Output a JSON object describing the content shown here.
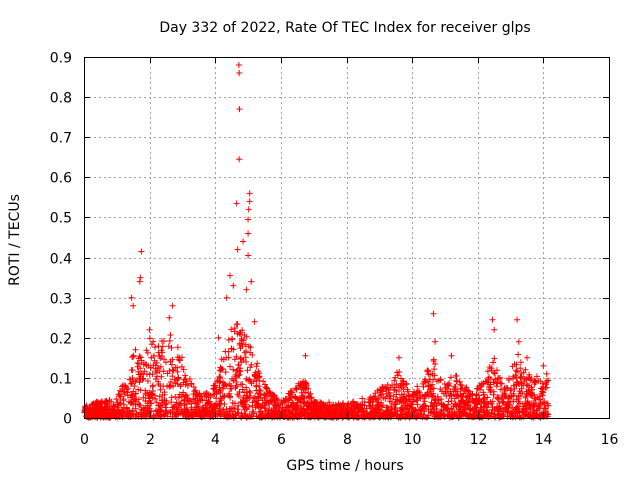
{
  "chart_data": {
    "type": "scatter",
    "title": "Day 332 of 2022, Rate Of TEC Index for receiver glps",
    "xlabel": "GPS time / hours",
    "ylabel": "ROTI / TECUs",
    "xlim": [
      0,
      16
    ],
    "ylim": [
      0,
      0.9
    ],
    "xticks": [
      "0",
      "2",
      "4",
      "6",
      "8",
      "10",
      "12",
      "14",
      "16"
    ],
    "yticks": [
      "0",
      "0.1",
      "0.2",
      "0.3",
      "0.4",
      "0.5",
      "0.6",
      "0.7",
      "0.8",
      "0.9"
    ],
    "grid": true,
    "marker": "+",
    "color": "#ff0000",
    "notable_points": [
      {
        "x": 1.45,
        "y": 0.3
      },
      {
        "x": 1.5,
        "y": 0.28
      },
      {
        "x": 1.75,
        "y": 0.415
      },
      {
        "x": 1.72,
        "y": 0.35
      },
      {
        "x": 1.7,
        "y": 0.34
      },
      {
        "x": 2.0,
        "y": 0.22
      },
      {
        "x": 2.6,
        "y": 0.25
      },
      {
        "x": 2.7,
        "y": 0.28
      },
      {
        "x": 4.1,
        "y": 0.2
      },
      {
        "x": 4.35,
        "y": 0.3
      },
      {
        "x": 4.45,
        "y": 0.355
      },
      {
        "x": 4.55,
        "y": 0.33
      },
      {
        "x": 4.65,
        "y": 0.535
      },
      {
        "x": 4.68,
        "y": 0.42
      },
      {
        "x": 4.72,
        "y": 0.88
      },
      {
        "x": 4.73,
        "y": 0.86
      },
      {
        "x": 4.74,
        "y": 0.77
      },
      {
        "x": 4.73,
        "y": 0.645
      },
      {
        "x": 4.85,
        "y": 0.44
      },
      {
        "x": 4.95,
        "y": 0.32
      },
      {
        "x": 5.05,
        "y": 0.56
      },
      {
        "x": 5.05,
        "y": 0.54
      },
      {
        "x": 5.02,
        "y": 0.52
      },
      {
        "x": 5.0,
        "y": 0.495
      },
      {
        "x": 5.0,
        "y": 0.46
      },
      {
        "x": 5.0,
        "y": 0.405
      },
      {
        "x": 5.1,
        "y": 0.34
      },
      {
        "x": 5.2,
        "y": 0.24
      },
      {
        "x": 6.75,
        "y": 0.155
      },
      {
        "x": 9.6,
        "y": 0.15
      },
      {
        "x": 10.65,
        "y": 0.26
      },
      {
        "x": 10.7,
        "y": 0.19
      },
      {
        "x": 11.2,
        "y": 0.155
      },
      {
        "x": 12.45,
        "y": 0.245
      },
      {
        "x": 12.5,
        "y": 0.22
      },
      {
        "x": 13.2,
        "y": 0.245
      },
      {
        "x": 13.25,
        "y": 0.19
      },
      {
        "x": 13.5,
        "y": 0.15
      },
      {
        "x": 14.0,
        "y": 0.13
      },
      {
        "x": 14.1,
        "y": 0.11
      }
    ],
    "activity_envelope": [
      {
        "x": 0.0,
        "y": 0.03
      },
      {
        "x": 0.5,
        "y": 0.04
      },
      {
        "x": 1.0,
        "y": 0.05
      },
      {
        "x": 1.3,
        "y": 0.1
      },
      {
        "x": 1.5,
        "y": 0.18
      },
      {
        "x": 1.8,
        "y": 0.14
      },
      {
        "x": 2.0,
        "y": 0.2
      },
      {
        "x": 2.3,
        "y": 0.18
      },
      {
        "x": 2.6,
        "y": 0.22
      },
      {
        "x": 2.9,
        "y": 0.17
      },
      {
        "x": 3.2,
        "y": 0.1
      },
      {
        "x": 3.5,
        "y": 0.06
      },
      {
        "x": 3.9,
        "y": 0.07
      },
      {
        "x": 4.2,
        "y": 0.15
      },
      {
        "x": 4.6,
        "y": 0.25
      },
      {
        "x": 5.0,
        "y": 0.2
      },
      {
        "x": 5.3,
        "y": 0.13
      },
      {
        "x": 5.6,
        "y": 0.07
      },
      {
        "x": 6.0,
        "y": 0.04
      },
      {
        "x": 6.7,
        "y": 0.1
      },
      {
        "x": 7.0,
        "y": 0.04
      },
      {
        "x": 8.0,
        "y": 0.035
      },
      {
        "x": 8.6,
        "y": 0.05
      },
      {
        "x": 9.2,
        "y": 0.08
      },
      {
        "x": 9.6,
        "y": 0.12
      },
      {
        "x": 10.0,
        "y": 0.06
      },
      {
        "x": 10.7,
        "y": 0.15
      },
      {
        "x": 11.0,
        "y": 0.09
      },
      {
        "x": 11.3,
        "y": 0.11
      },
      {
        "x": 11.8,
        "y": 0.06
      },
      {
        "x": 12.2,
        "y": 0.09
      },
      {
        "x": 12.5,
        "y": 0.17
      },
      {
        "x": 12.8,
        "y": 0.07
      },
      {
        "x": 13.2,
        "y": 0.16
      },
      {
        "x": 13.6,
        "y": 0.1
      },
      {
        "x": 14.0,
        "y": 0.1
      },
      {
        "x": 14.15,
        "y": 0.1
      }
    ],
    "data_end_hour": 14.15
  }
}
